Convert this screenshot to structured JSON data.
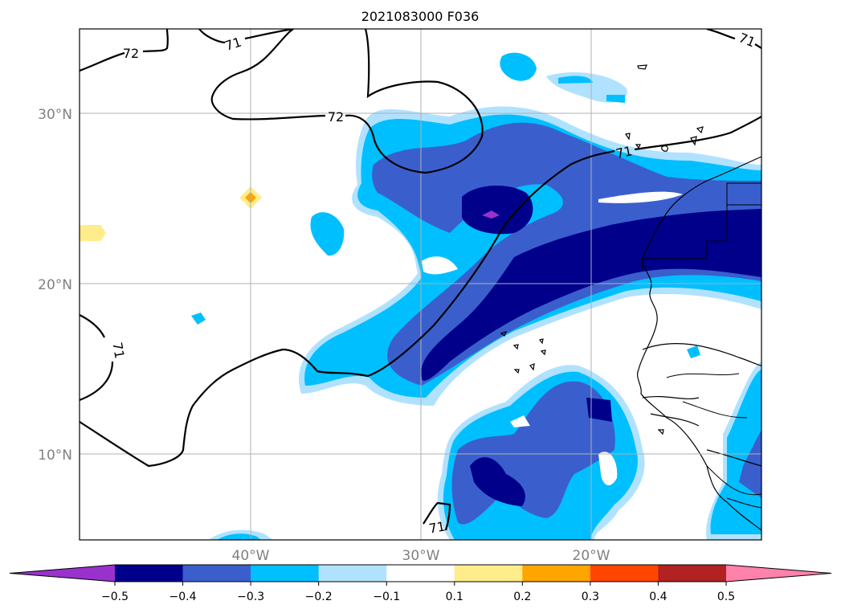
{
  "title": "2021083000 F036",
  "map": {
    "lat_labels": [
      "30°N",
      "20°N",
      "10°N"
    ],
    "lon_labels": [
      "40°W",
      "30°W",
      "20°W"
    ],
    "contour_labels": [
      "72",
      "71",
      "72",
      "71",
      "71",
      "71",
      "71"
    ]
  },
  "colorbar": {
    "ticks": [
      "−0.5",
      "−0.4",
      "−0.3",
      "−0.2",
      "−0.1",
      "0.1",
      "0.2",
      "0.3",
      "0.4",
      "0.5"
    ],
    "colors": [
      "#9932cc",
      "#00008b",
      "#3a5fcd",
      "#00bfff",
      "#b0e2ff",
      "#ffffff",
      "#ffec8b",
      "#ffa500",
      "#ff4500",
      "#b22222",
      "#ff82ab"
    ]
  }
}
